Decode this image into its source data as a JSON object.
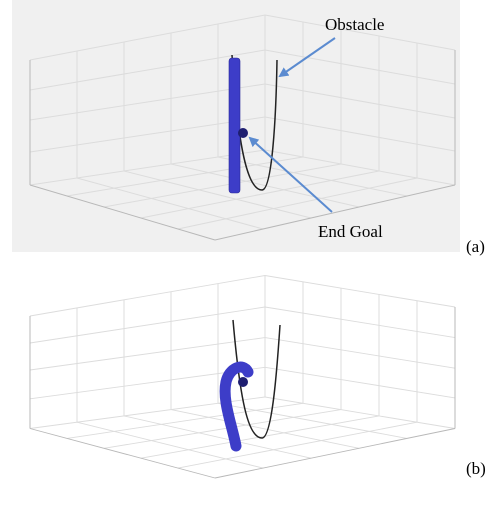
{
  "annotations": {
    "obstacle": "Obstacle",
    "end_goal": "End Goal"
  },
  "panels": [
    {
      "label": "(a)"
    },
    {
      "label": "(b)"
    }
  ]
}
